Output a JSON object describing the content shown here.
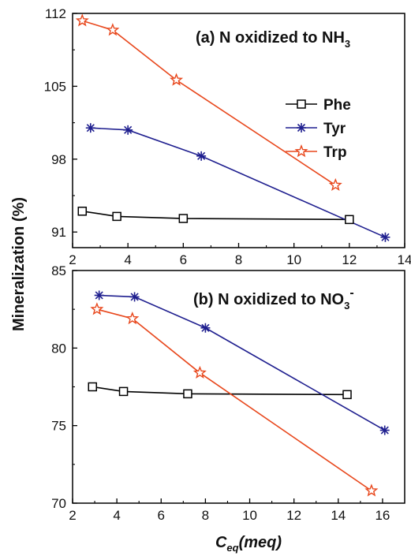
{
  "chart_data": {
    "ylabel": "Mineralization (%)",
    "xlabel_main": "C",
    "xlabel_sub": "eq",
    "xlabel_rest": "(meq)",
    "legend": [
      {
        "name": "Phe",
        "color": "#000000",
        "marker": "square-icon"
      },
      {
        "name": "Tyr",
        "color": "#1f1f8f",
        "marker": "asterisk-icon"
      },
      {
        "name": "Trp",
        "color": "#e8471c",
        "marker": "star-icon"
      }
    ],
    "panels": [
      {
        "type": "line",
        "title_main": "(a) N oxidized to NH",
        "title_sub": "3",
        "title_sup": "",
        "xlim": [
          2,
          14
        ],
        "ylim": [
          89.5,
          112
        ],
        "xticks": [
          "2",
          "4",
          "6",
          "8",
          "10",
          "12",
          "14"
        ],
        "yticks": [
          "91",
          "98",
          "105",
          "112"
        ],
        "series": [
          {
            "name": "Phe",
            "x": [
              2.35,
              3.6,
              6.0,
              12.0
            ],
            "y": [
              93.0,
              92.5,
              92.3,
              92.2
            ]
          },
          {
            "name": "Tyr",
            "x": [
              2.65,
              4.0,
              6.65,
              13.3
            ],
            "y": [
              101.0,
              100.8,
              98.3,
              90.5
            ]
          },
          {
            "name": "Trp",
            "x": [
              2.35,
              3.45,
              5.75,
              11.5
            ],
            "y": [
              111.3,
              110.4,
              105.6,
              95.5
            ]
          }
        ]
      },
      {
        "type": "line",
        "title_main": "(b) N oxidized to NO",
        "title_sub": "3",
        "title_sup": "-",
        "xlim": [
          2,
          17
        ],
        "ylim": [
          70,
          85
        ],
        "xticks": [
          "2",
          "4",
          "6",
          "8",
          "10",
          "12",
          "14",
          "16"
        ],
        "yticks": [
          "70",
          "75",
          "80",
          "85"
        ],
        "series": [
          {
            "name": "Phe",
            "x": [
              2.9,
              4.3,
              7.2,
              14.4
            ],
            "y": [
              77.5,
              77.2,
              77.05,
              77.0
            ]
          },
          {
            "name": "Tyr",
            "x": [
              3.2,
              4.8,
              8.0,
              16.1
            ],
            "y": [
              83.4,
              83.3,
              81.3,
              74.7
            ]
          },
          {
            "name": "Trp",
            "x": [
              3.1,
              4.7,
              7.75,
              15.5
            ],
            "y": [
              82.5,
              81.9,
              78.4,
              70.8
            ]
          }
        ]
      }
    ]
  }
}
